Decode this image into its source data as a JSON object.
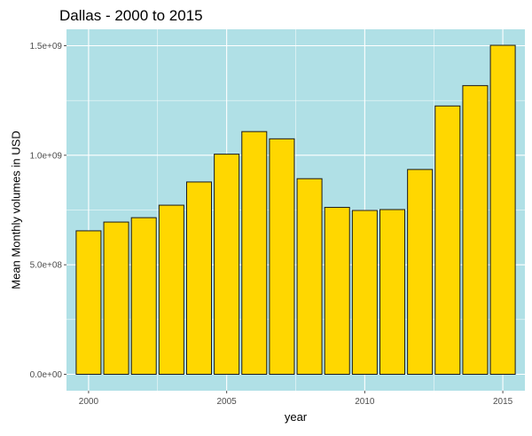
{
  "chart_data": {
    "type": "bar",
    "title": "Dallas - 2000 to 2015",
    "xlabel": "year",
    "ylabel": "Mean Monthly volumes in USD",
    "x": [
      2000,
      2001,
      2002,
      2003,
      2004,
      2005,
      2006,
      2007,
      2008,
      2009,
      2010,
      2011,
      2012,
      2013,
      2014,
      2015
    ],
    "values": [
      655000000,
      695000000,
      715000000,
      772000000,
      878000000,
      1005000000,
      1108000000,
      1075000000,
      893000000,
      762000000,
      748000000,
      752000000,
      935000000,
      1225000000,
      1318000000,
      1502000000
    ],
    "xlim": [
      1999.2,
      2015.8
    ],
    "ylim": [
      -75000000,
      1575000000
    ],
    "x_ticks": [
      2000,
      2005,
      2010,
      2015
    ],
    "x_tick_labels": [
      "2000",
      "2005",
      "2010",
      "2015"
    ],
    "y_ticks": [
      0,
      500000000,
      1000000000,
      1500000000
    ],
    "y_tick_labels": [
      "0.0e+00",
      "5.0e+08",
      "1.0e+09",
      "1.5e+09"
    ],
    "grid": true,
    "colors": {
      "panel_background": "#b0e0e6",
      "grid": "#ffffff",
      "bar_fill": "#ffd700",
      "bar_outline": "#1a1a1a",
      "tick": "#4d4d4d"
    }
  }
}
